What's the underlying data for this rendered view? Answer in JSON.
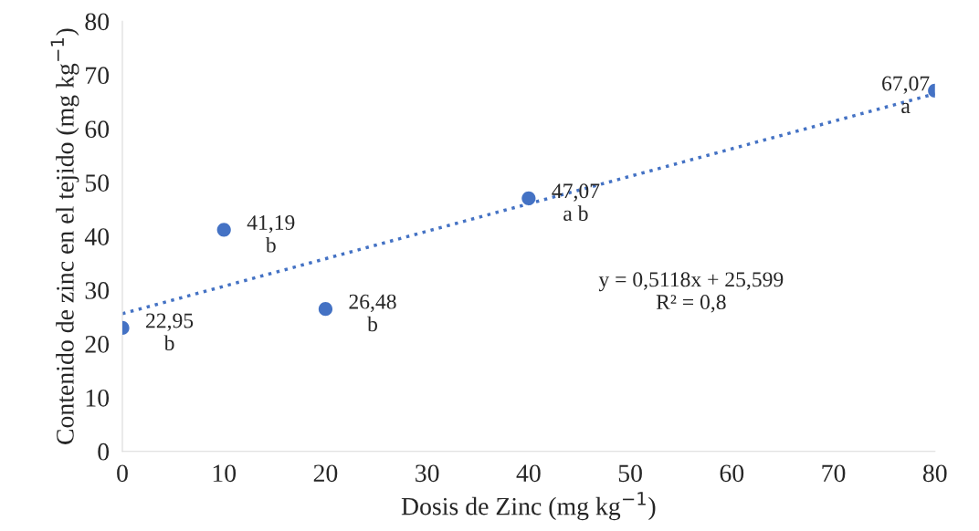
{
  "chart_data": {
    "type": "scatter",
    "xlabel": "Dosis de Zinc (mg kg$^{−1}$)",
    "ylabel": "Contenido de zinc en el tejido (mg kg$^{−1}$)",
    "xlim": [
      0,
      80
    ],
    "xticks": [
      0,
      10,
      20,
      30,
      40,
      50,
      60,
      70,
      80
    ],
    "ylim": [
      0,
      80
    ],
    "yticks": [
      0,
      10,
      20,
      30,
      40,
      50,
      60,
      70,
      80
    ],
    "grid": false,
    "legend": false,
    "marker": "circle",
    "series": [
      {
        "color": "#4472c4",
        "x": [
          0,
          10,
          20,
          40,
          80
        ],
        "values": [
          22.95,
          41.19,
          26.48,
          47.07,
          67.07
        ],
        "value_labels": [
          "22,95\nb",
          "41,19\nb",
          "26,48\nb",
          "47,07\na b",
          "67,07\na"
        ]
      },
      {
        "type": "line",
        "color": "#4472c4",
        "line_style": "dotted",
        "marker": "none",
        "x": [
          0,
          80
        ],
        "values": [
          25.6,
          66.5
        ]
      }
    ],
    "annotations": [
      "y = 0,5118x + 25,599\nR² = 0,8"
    ]
  }
}
